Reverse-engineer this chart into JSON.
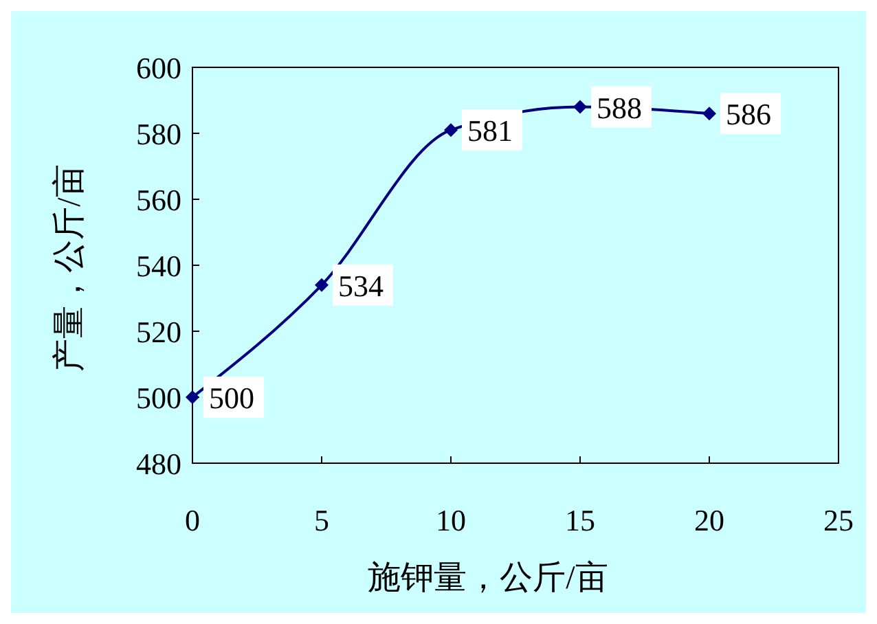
{
  "chart_data": {
    "type": "line",
    "xlabel": "施钾量，公斤/亩",
    "ylabel": "产量，公斤/亩",
    "x": [
      0,
      5,
      10,
      15,
      20
    ],
    "series": [
      {
        "color": "#000080",
        "values": [
          500,
          534,
          581,
          588,
          586
        ]
      }
    ],
    "xlim": [
      0,
      25
    ],
    "xticks": [
      0,
      5,
      10,
      15,
      20,
      25
    ],
    "ylim": [
      480,
      600
    ],
    "yticks": [
      480,
      500,
      520,
      540,
      560,
      580,
      600
    ],
    "grid": false,
    "marker": "diamond",
    "line_style": "solid",
    "data_labels": true
  }
}
